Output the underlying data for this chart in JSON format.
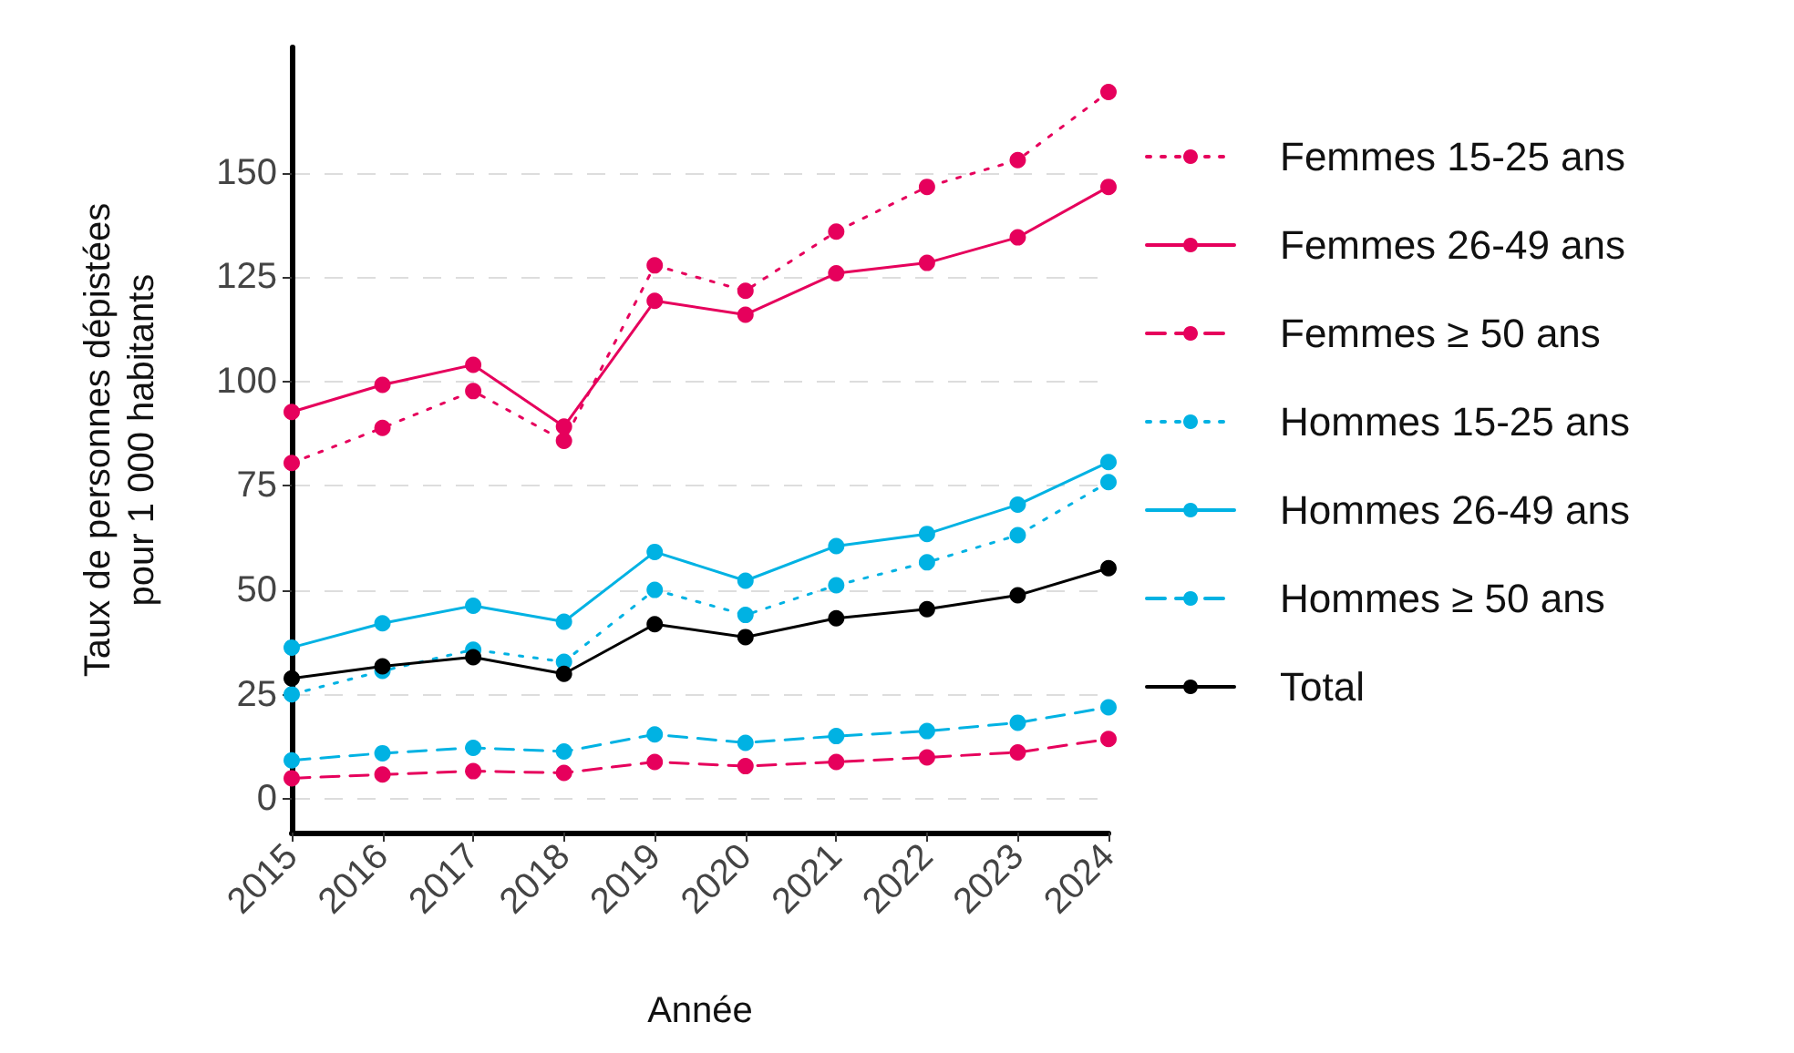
{
  "chart_data": {
    "type": "line",
    "xlabel": "Année",
    "ylabel": "Taux de personnes dépistées\npour 1 000 habitants",
    "categories": [
      "2015",
      "2016",
      "2017",
      "2018",
      "2019",
      "2020",
      "2021",
      "2022",
      "2023",
      "2024"
    ],
    "series": [
      {
        "name": "Femmes 15-25 ans",
        "color": "#e6005c",
        "line_style": "dotted",
        "values": [
          80.5,
          88.9,
          97.7,
          85.8,
          127.8,
          121.7,
          135.9,
          146.6,
          153,
          169.3
        ]
      },
      {
        "name": "Femmes 26-49 ans",
        "color": "#e6005c",
        "line_style": "solid",
        "values": [
          92.7,
          99.2,
          104,
          89.2,
          119.3,
          116,
          125.9,
          128.4,
          134.5,
          146.6
        ]
      },
      {
        "name": "Femmes ≥ 50 ans",
        "color": "#e6005c",
        "line_style": "dashed",
        "values": [
          5,
          5.9,
          6.7,
          6.3,
          8.9,
          7.9,
          8.9,
          10,
          11.2,
          14.4
        ]
      },
      {
        "name": "Hommes 15-25 ans",
        "color": "#00b2e3",
        "line_style": "dotted",
        "values": [
          25.1,
          30.7,
          35.8,
          32.9,
          50.1,
          44.1,
          51.2,
          56.7,
          63.2,
          75.9
        ]
      },
      {
        "name": "Hommes 26-49 ans",
        "color": "#00b2e3",
        "line_style": "solid",
        "values": [
          36.3,
          42.1,
          46.3,
          42.5,
          59.2,
          52.3,
          60.6,
          63.5,
          70.5,
          80.7
        ]
      },
      {
        "name": "Hommes ≥ 50 ans",
        "color": "#00b2e3",
        "line_style": "dashed",
        "values": [
          9.3,
          11,
          12.3,
          11.4,
          15.5,
          13.5,
          15.1,
          16.3,
          18.3,
          22
        ]
      },
      {
        "name": "Total",
        "color": "#000000",
        "line_style": "solid",
        "values": [
          28.9,
          31.8,
          34,
          30,
          41.9,
          38.8,
          43.3,
          45.5,
          48.8,
          55.3
        ]
      }
    ],
    "ylim": [
      -8,
      180
    ],
    "yticks": [
      0,
      25,
      50,
      75,
      100,
      125,
      150
    ],
    "grid": "y",
    "legend": "right",
    "marker": "circle"
  }
}
